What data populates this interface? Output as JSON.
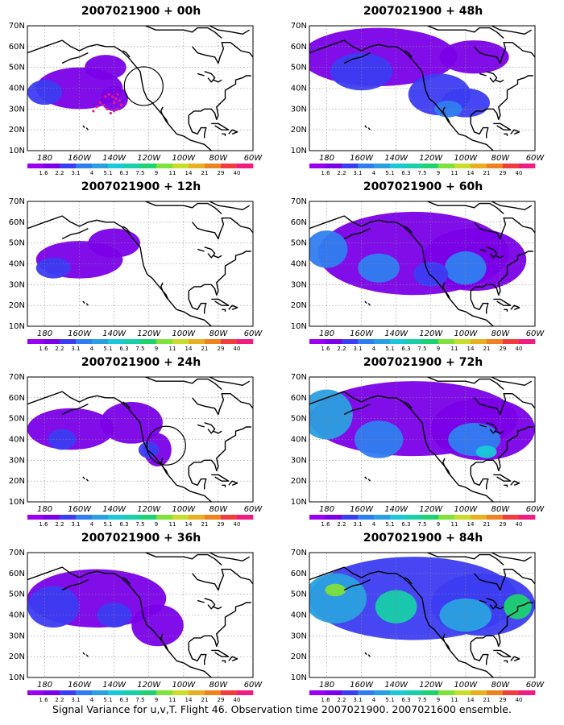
{
  "panels": [
    {
      "title": "2007021900 + 00h",
      "circle": true,
      "dots": true
    },
    {
      "title": "2007021900 + 48h"
    },
    {
      "title": "2007021900 + 12h"
    },
    {
      "title": "2007021900 + 60h"
    },
    {
      "title": "2007021900 + 24h",
      "circle": true
    },
    {
      "title": "2007021900 + 72h"
    },
    {
      "title": "2007021900 + 36h"
    },
    {
      "title": "2007021900 + 84h"
    }
  ],
  "axes": {
    "lat_labels": [
      "70N",
      "60N",
      "50N",
      "40N",
      "30N",
      "20N",
      "10N"
    ],
    "lon_labels": [
      "180",
      "160W",
      "140W",
      "120W",
      "100W",
      "80W",
      "60W"
    ],
    "lat_range": [
      10,
      70
    ],
    "lon_range": [
      -190,
      -60
    ]
  },
  "colorbar": {
    "labels": [
      "1.6",
      "2.2",
      "3.1",
      "4",
      "5.1",
      "6.3",
      "7.5",
      "9",
      "11",
      "14",
      "21",
      "29",
      "40"
    ],
    "colors": [
      "#9a00f0",
      "#7a00e8",
      "#3c3cf2",
      "#2f7ef0",
      "#2aa0e0",
      "#19c9d8",
      "#18cfa8",
      "#1ed270",
      "#7ee23a",
      "#c8dc2a",
      "#e8b021",
      "#ee8222",
      "#f03c3c",
      "#f01c80"
    ]
  },
  "footer": "Signal Variance for u,v,T. Flight 46. Observation time 2007021900. 2007021600 ensemble."
}
